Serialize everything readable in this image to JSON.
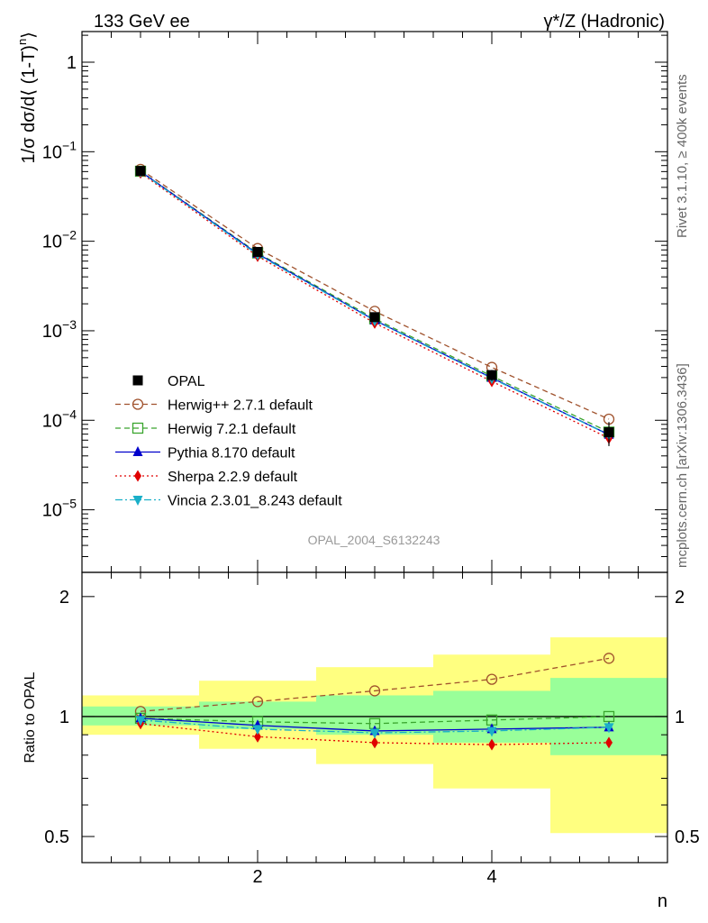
{
  "header": {
    "left_title": "133 GeV ee",
    "right_title": "γ*/Z (Hadronic)"
  },
  "side_labels": {
    "rivet": "Rivet 3.1.10, ≥ 400k events",
    "mcplots": "mcplots.cern.ch [arXiv:1306.3436]"
  },
  "analysis_id": "OPAL_2004_S6132243",
  "chart_data": [
    {
      "type": "line",
      "panel": "main",
      "ylabel_parts": {
        "prefix": "1/σ dσ/d⟨ (1-T)",
        "sup": "n",
        "suffix": "⟩"
      },
      "yscale": "log",
      "ylim": [
        2e-06,
        2.2
      ],
      "xlim": [
        0.5,
        5.5
      ],
      "y_ticks": [
        {
          "value": 1,
          "base": "1",
          "exp": ""
        },
        {
          "value": 0.1,
          "base": "10",
          "exp": "−1"
        },
        {
          "value": 0.01,
          "base": "10",
          "exp": "−2"
        },
        {
          "value": 0.001,
          "base": "10",
          "exp": "−3"
        },
        {
          "value": 0.0001,
          "base": "10",
          "exp": "−4"
        },
        {
          "value": 1e-05,
          "base": "10",
          "exp": "−5"
        }
      ],
      "x": [
        1,
        2,
        3,
        4,
        5
      ],
      "data": {
        "name": "OPAL",
        "values": [
          0.061,
          0.0076,
          0.00142,
          0.00032,
          7.35e-05
        ],
        "err_lo": [
          0.0035,
          0.0006,
          0.00014,
          4.5e-05,
          2.2e-05
        ],
        "err_hi": [
          0.0035,
          0.0006,
          0.00014,
          4.5e-05,
          2.2e-05
        ]
      },
      "series": [
        {
          "name": "Herwig++ 2.7.1 default",
          "color": "#a0522d",
          "dash": "6,4",
          "marker": "circle-open",
          "values": [
            0.0635,
            0.0083,
            0.00165,
            0.00039,
            0.000103
          ]
        },
        {
          "name": "Herwig 7.2.1 default",
          "color": "#3aa52e",
          "dash": "6,4",
          "marker": "square-open",
          "values": [
            0.0605,
            0.0074,
            0.00136,
            0.000312,
            7.38e-05
          ]
        },
        {
          "name": "Pythia 8.170 default",
          "color": "#0000cc",
          "dash": "",
          "marker": "triangle-up",
          "values": [
            0.0602,
            0.00725,
            0.00131,
            0.000298,
            6.9e-05
          ]
        },
        {
          "name": "Sherpa 2.2.9 default",
          "color": "#e00000",
          "dash": "2,3",
          "marker": "diamond",
          "values": [
            0.058,
            0.0068,
            0.00122,
            0.000272,
            6.3e-05
          ]
        },
        {
          "name": "Vincia 2.3.01_8.243 default",
          "color": "#1aafc8",
          "dash": "8,3,2,3",
          "marker": "triangle-down",
          "values": [
            0.0597,
            0.0071,
            0.0013,
            0.000294,
            6.88e-05
          ]
        }
      ]
    },
    {
      "type": "line",
      "panel": "ratio",
      "ylabel": "Ratio to OPAL",
      "xlabel": "n",
      "ylim": [
        0.43,
        2.3
      ],
      "xlim": [
        0.5,
        5.5
      ],
      "y_ticks": [
        0.5,
        1,
        2
      ],
      "y_tick_labels": [
        "0.5",
        "1",
        "2"
      ],
      "x_ticks": [
        2,
        4
      ],
      "x_tick_labels": [
        "2",
        "4"
      ],
      "bands": {
        "inner": [
          [
            0.95,
            1.06
          ],
          [
            0.93,
            1.09
          ],
          [
            0.9,
            1.13
          ],
          [
            0.86,
            1.16
          ],
          [
            0.8,
            1.25
          ]
        ],
        "outer": [
          [
            0.9,
            1.13
          ],
          [
            0.83,
            1.23
          ],
          [
            0.76,
            1.33
          ],
          [
            0.66,
            1.43
          ],
          [
            0.51,
            1.58
          ]
        ]
      },
      "series": [
        {
          "name": "Herwig++ 2.7.1 default",
          "values": [
            1.03,
            1.09,
            1.16,
            1.24,
            1.4
          ]
        },
        {
          "name": "Herwig 7.2.1 default",
          "values": [
            0.99,
            0.97,
            0.96,
            0.98,
            1.0
          ]
        },
        {
          "name": "Pythia 8.170 default",
          "values": [
            0.99,
            0.95,
            0.92,
            0.93,
            0.94
          ]
        },
        {
          "name": "Sherpa 2.2.9 default",
          "values": [
            0.96,
            0.89,
            0.86,
            0.85,
            0.86
          ]
        },
        {
          "name": "Vincia 2.3.01_8.243 default",
          "values": [
            0.98,
            0.93,
            0.91,
            0.92,
            0.94
          ]
        }
      ]
    }
  ]
}
